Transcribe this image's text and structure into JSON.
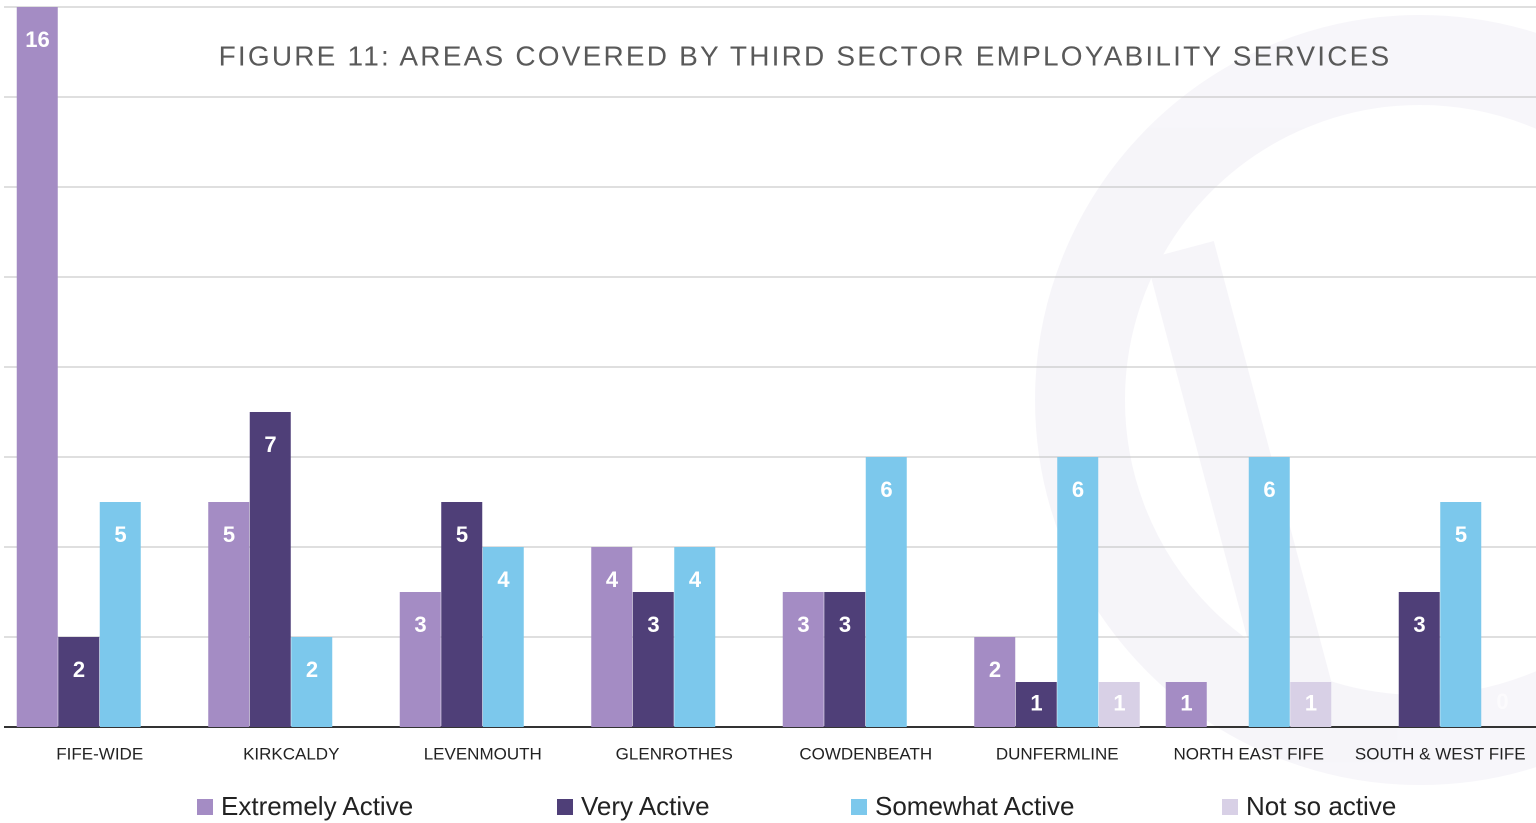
{
  "chart_data": {
    "type": "bar",
    "title": "FIGURE 11: AREAS COVERED BY THIRD SECTOR EMPLOYABILITY SERVICES",
    "categories": [
      "FIFE-WIDE",
      "KIRKCALDY",
      "LEVENMOUTH",
      "GLENROTHES",
      "COWDENBEATH",
      "DUNFERMLINE",
      "NORTH EAST FIFE",
      "SOUTH & WEST FIFE"
    ],
    "series": [
      {
        "name": "Extremely Active",
        "color": "#a48cc4",
        "values": [
          16,
          5,
          3,
          4,
          3,
          2,
          1,
          null
        ]
      },
      {
        "name": "Very Active",
        "color": "#4f3f78",
        "values": [
          2,
          7,
          5,
          3,
          3,
          1,
          null,
          3
        ]
      },
      {
        "name": "Somewhat Active",
        "color": "#7cc8ec",
        "values": [
          5,
          2,
          4,
          4,
          6,
          6,
          6,
          5
        ]
      },
      {
        "name": "Not so active",
        "color": "#d8d0e6",
        "values": [
          null,
          null,
          null,
          null,
          null,
          1,
          1,
          0
        ]
      }
    ],
    "ylim": [
      0,
      16
    ],
    "yticks": [
      0,
      2,
      4,
      6,
      8,
      10,
      12,
      14,
      16
    ],
    "grid": true,
    "legend": "bottom"
  }
}
